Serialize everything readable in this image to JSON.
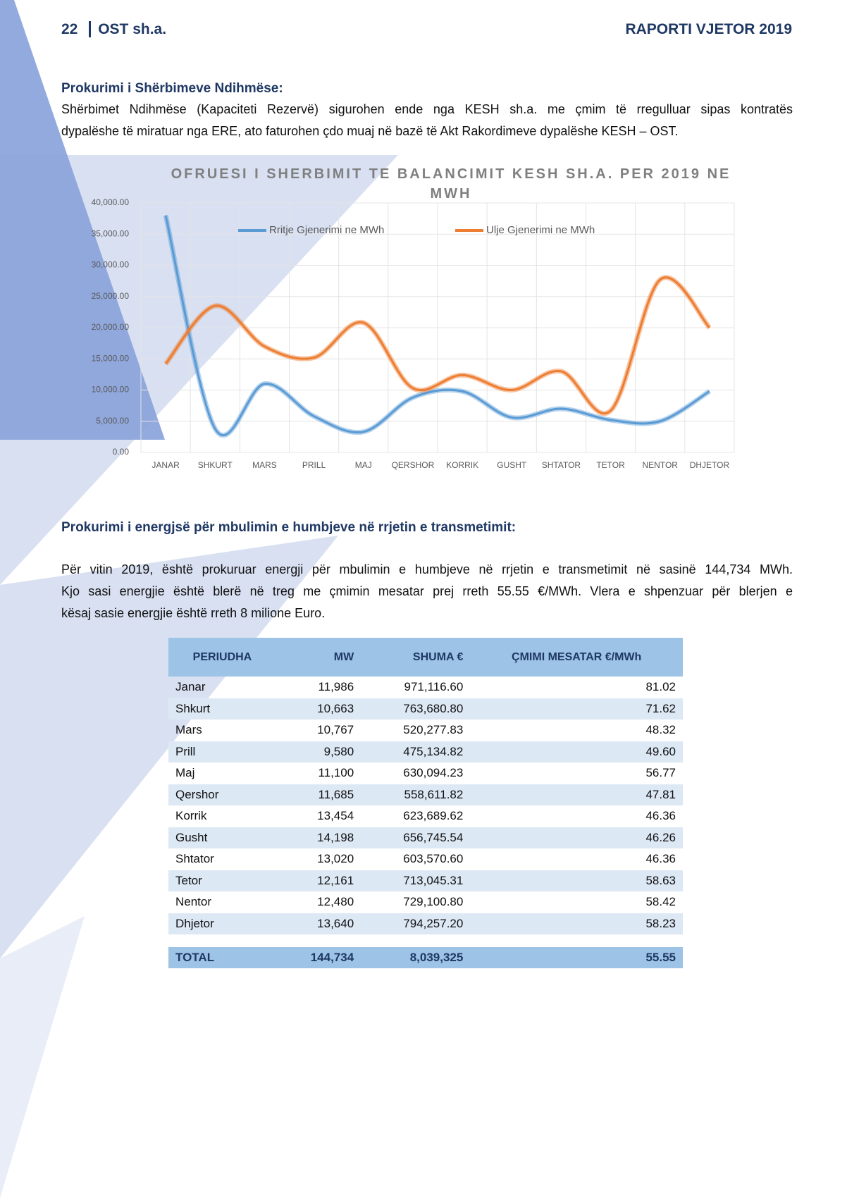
{
  "header": {
    "page": "22",
    "org": "OST sh.a.",
    "report": "RAPORTI VJETOR 2019"
  },
  "section1": {
    "heading": "Prokurimi i Shërbimeve Ndihmëse:",
    "lines": [
      "Shërbimet Ndihmëse (Kapaciteti Rezervë) sigurohen ende nga KESH sh.a. me çmim të rregulluar sipas kontratës",
      "dypalëshe të miratuar nga ERE, ato faturohen çdo muaj në bazë të Akt Rakordimeve dypalëshe KESH – OST."
    ]
  },
  "chart_data": {
    "type": "line",
    "title": "OFRUESI I SHERBIMIT TE BALANCIMIT KESH SH.A. PER 2019 NE MWH",
    "categories": [
      "JANAR",
      "SHKURT",
      "MARS",
      "PRILL",
      "MAJ",
      "QERSHOR",
      "KORRIK",
      "GUSHT",
      "SHTATOR",
      "TETOR",
      "NENTOR",
      "DHJETOR"
    ],
    "series": [
      {
        "name": "Rritje Gjenerimi ne MWh",
        "color": "#5b9bd5",
        "values": [
          38000,
          3800,
          11000,
          5800,
          3300,
          8800,
          9800,
          5600,
          7000,
          5200,
          5000,
          9800
        ]
      },
      {
        "name": "Ulje Gjenerimi ne MWh",
        "color": "#ed7d31",
        "values": [
          14200,
          23500,
          17000,
          15200,
          20800,
          10300,
          12400,
          10000,
          13000,
          6700,
          27700,
          20000
        ]
      }
    ],
    "ylim": [
      0,
      40000
    ],
    "yticks": [
      {
        "value": 0,
        "label": "0.00"
      },
      {
        "value": 5000,
        "label": "5,000.00"
      },
      {
        "value": 10000,
        "label": "10,000.00"
      },
      {
        "value": 15000,
        "label": "15,000.00"
      },
      {
        "value": 20000,
        "label": "20,000.00"
      },
      {
        "value": 25000,
        "label": "25,000.00"
      },
      {
        "value": 30000,
        "label": "30,000.00"
      },
      {
        "value": 35000,
        "label": "35,000.00"
      },
      {
        "value": 40000,
        "label": "40,000.00"
      }
    ],
    "grid": true,
    "legend": "top"
  },
  "section2": {
    "heading": "Prokurimi i energjsë për mbulimin e humbjeve në rrjetin e transmetimit:",
    "lines": [
      "Për vitin 2019, është prokuruar energji për mbulimin e humbjeve në rrjetin e transmetimit në sasinë  144,734 MWh.",
      "Kjo sasi energjie është blerë në treg me çmimin mesatar prej rreth 55.55 €/MWh. Vlera e shpenzuar për blerjen e",
      "kësaj sasie energjie është rreth 8  milione Euro."
    ]
  },
  "table": {
    "header": [
      "PERIUDHA",
      "MW",
      "SHUMA €",
      "ÇMIMI MESATAR €/MWh"
    ],
    "rows": [
      [
        "Janar",
        "11,986",
        "971,116.60",
        "81.02"
      ],
      [
        "Shkurt",
        "10,663",
        "763,680.80",
        "71.62"
      ],
      [
        "Mars",
        "10,767",
        "520,277.83",
        "48.32"
      ],
      [
        "Prill",
        "9,580",
        "475,134.82",
        "49.60"
      ],
      [
        "Maj",
        "11,100",
        "630,094.23",
        "56.77"
      ],
      [
        "Qershor",
        "11,685",
        "558,611.82",
        "47.81"
      ],
      [
        "Korrik",
        "13,454",
        "623,689.62",
        "46.36"
      ],
      [
        "Gusht",
        "14,198",
        "656,745.54",
        "46.26"
      ],
      [
        "Shtator",
        "13,020",
        "603,570.60",
        "46.36"
      ],
      [
        "Tetor",
        "12,161",
        "713,045.31",
        "58.63"
      ],
      [
        "Nentor",
        "12,480",
        "729,100.80",
        "58.42"
      ],
      [
        "Dhjetor",
        "13,640",
        "794,257.20",
        "58.23"
      ]
    ],
    "total": [
      "TOTAL",
      "144,734",
      "8,039,325",
      "55.55"
    ]
  }
}
